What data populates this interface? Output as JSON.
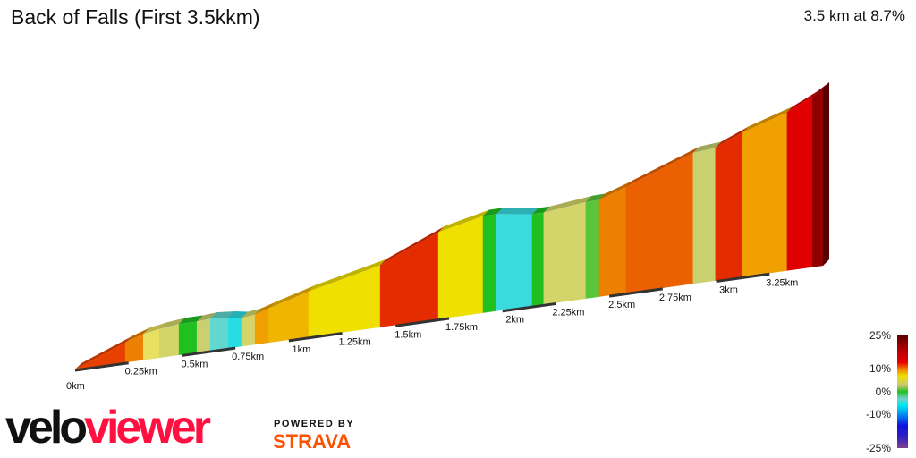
{
  "title": "Back of Falls (First 3.5kkm)",
  "summary": "3.5 km at 8.7%",
  "chart_data": {
    "type": "area",
    "title": "Back of Falls (First 3.5kkm)",
    "xlabel": "",
    "ylabel": "",
    "xlim": [
      0,
      3.5
    ],
    "x_ticks": [
      "0km",
      "0.25km",
      "0.5km",
      "0.75km",
      "1km",
      "1.25km",
      "1.5km",
      "1.75km",
      "2km",
      "2.25km",
      "2.5km",
      "2.75km",
      "3km",
      "3.25km"
    ],
    "x_tick_values": [
      0,
      0.25,
      0.5,
      0.75,
      1,
      1.25,
      1.5,
      1.75,
      2,
      2.25,
      2.5,
      2.75,
      3,
      3.25
    ],
    "segments": [
      [
        0,
        0.234,
        14
      ],
      [
        0.234,
        0.318,
        12
      ],
      [
        0.318,
        0.393,
        6
      ],
      [
        0.393,
        0.485,
        4
      ],
      [
        0.485,
        0.569,
        0
      ],
      [
        0.569,
        0.632,
        3
      ],
      [
        0.632,
        0.716,
        -3
      ],
      [
        0.716,
        0.778,
        -6
      ],
      [
        0.778,
        0.841,
        4
      ],
      [
        0.841,
        0.904,
        11
      ],
      [
        0.904,
        1.092,
        10
      ],
      [
        1.092,
        1.427,
        8
      ],
      [
        1.427,
        1.699,
        15
      ],
      [
        1.699,
        1.908,
        8
      ],
      [
        1.908,
        1.971,
        0
      ],
      [
        1.971,
        2.138,
        -5
      ],
      [
        2.138,
        2.192,
        0
      ],
      [
        2.192,
        2.389,
        4
      ],
      [
        2.389,
        2.452,
        1
      ],
      [
        2.452,
        2.577,
        12
      ],
      [
        2.577,
        2.891,
        13
      ],
      [
        2.891,
        2.996,
        3
      ],
      [
        2.996,
        3.121,
        15
      ],
      [
        3.121,
        3.331,
        11
      ],
      [
        3.331,
        3.45,
        17
      ],
      [
        3.45,
        3.5,
        22
      ]
    ],
    "legend": {
      "labels": [
        "25%",
        "10%",
        "0%",
        "-10%",
        "-25%"
      ],
      "range": [
        -25,
        25
      ]
    }
  },
  "branding": {
    "logo_a": "velo",
    "logo_b": "viewer",
    "powered": "POWERED BY",
    "strava": "STRAVA"
  }
}
